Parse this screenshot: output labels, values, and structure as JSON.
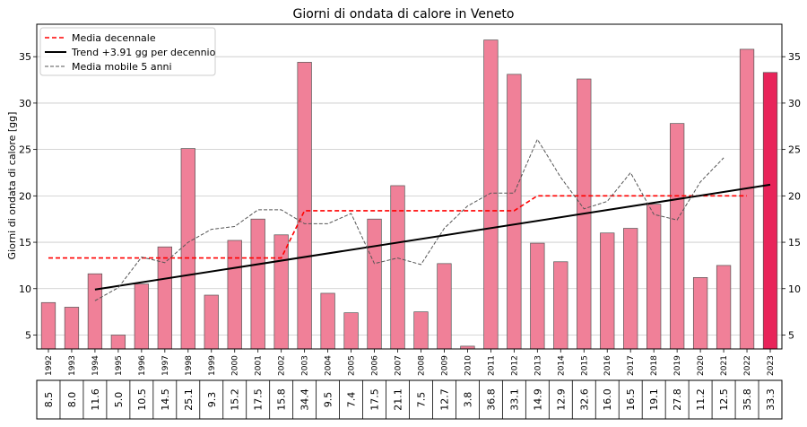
{
  "chart_data": {
    "type": "bar",
    "title": "Giorni di ondata di calore in Veneto",
    "ylabel": "Giorni di ondata di calore [gg]",
    "xlabel": "",
    "ylim": [
      3.5,
      38.5
    ],
    "yticks": [
      5,
      10,
      15,
      20,
      25,
      30,
      35
    ],
    "grid": true,
    "legend_position": "top-left",
    "categories": [
      "1992",
      "1993",
      "1994",
      "1995",
      "1996",
      "1997",
      "1998",
      "1999",
      "2000",
      "2001",
      "2002",
      "2003",
      "2004",
      "2005",
      "2006",
      "2007",
      "2008",
      "2009",
      "2010",
      "2011",
      "2012",
      "2013",
      "2014",
      "2015",
      "2016",
      "2017",
      "2018",
      "2019",
      "2020",
      "2021",
      "2022",
      "2023"
    ],
    "values": [
      8.5,
      8.0,
      11.6,
      5.0,
      10.5,
      14.5,
      25.1,
      9.3,
      15.2,
      17.5,
      15.8,
      34.4,
      9.5,
      7.4,
      17.5,
      21.1,
      7.5,
      12.7,
      3.8,
      36.8,
      33.1,
      14.9,
      12.9,
      32.6,
      16.0,
      16.5,
      19.1,
      27.8,
      11.2,
      12.5,
      35.8,
      33.3
    ],
    "value_labels": [
      "8.5",
      "8.0",
      "11.6",
      "5.0",
      "10.5",
      "14.5",
      "25.1",
      "9.3",
      "15.2",
      "17.5",
      "15.8",
      "34.4",
      "9.5",
      "7.4",
      "17.5",
      "21.1",
      "7.5",
      "12.7",
      "3.8",
      "36.8",
      "33.1",
      "14.9",
      "12.9",
      "32.6",
      "16.0",
      "16.5",
      "19.1",
      "27.8",
      "11.2",
      "12.5",
      "35.8",
      "33.3"
    ],
    "colors": {
      "bar": "#f08098",
      "bar_highlight": "#e8245a",
      "bar_edge": "#555555",
      "decade_mean": "#ff0000",
      "trend": "#000000",
      "moving_avg": "#555555",
      "grid": "#c8c8c8"
    },
    "highlight_index": 31,
    "series": [
      {
        "name": "Media decennale",
        "style": "dashed-red",
        "points": [
          [
            0,
            13.3
          ],
          [
            10,
            13.3
          ],
          [
            11,
            18.4
          ],
          [
            20,
            18.4
          ],
          [
            21,
            20.0
          ],
          [
            30,
            20.0
          ]
        ]
      },
      {
        "name": "Trend +3.91 gg per decennio",
        "style": "solid-black",
        "points": [
          [
            2,
            9.9
          ],
          [
            31,
            21.2
          ]
        ]
      },
      {
        "name": "Media mobile 5 anni",
        "style": "dashed-gray",
        "points": [
          [
            2,
            8.7
          ],
          [
            3,
            10.1
          ],
          [
            4,
            13.4
          ],
          [
            5,
            12.8
          ],
          [
            6,
            15.0
          ],
          [
            7,
            16.4
          ],
          [
            8,
            16.7
          ],
          [
            9,
            18.5
          ],
          [
            10,
            18.5
          ],
          [
            11,
            17.0
          ],
          [
            12,
            17.0
          ],
          [
            13,
            18.1
          ],
          [
            14,
            12.7
          ],
          [
            15,
            13.3
          ],
          [
            16,
            12.6
          ],
          [
            17,
            16.5
          ],
          [
            18,
            18.9
          ],
          [
            19,
            20.3
          ],
          [
            20,
            20.3
          ],
          [
            21,
            26.1
          ],
          [
            22,
            22.0
          ],
          [
            23,
            18.6
          ],
          [
            24,
            19.4
          ],
          [
            25,
            22.5
          ],
          [
            26,
            18.0
          ],
          [
            27,
            17.4
          ],
          [
            28,
            21.5
          ],
          [
            29,
            24.1
          ]
        ]
      }
    ]
  }
}
